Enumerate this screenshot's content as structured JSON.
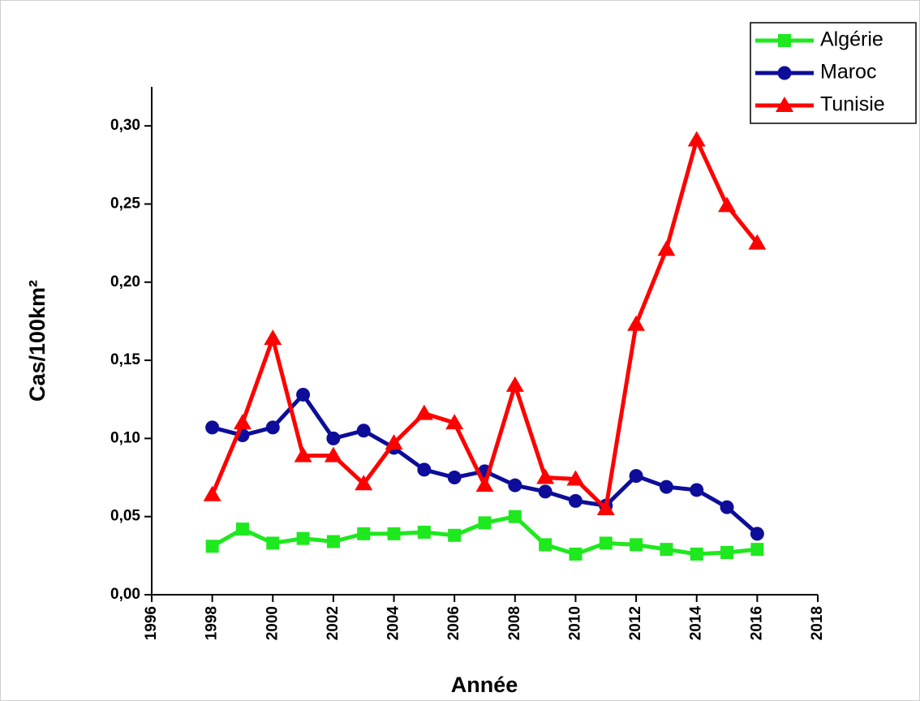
{
  "chart_data": {
    "type": "line",
    "xlabel": "Année",
    "ylabel": "Cas/100km²",
    "xlim": [
      1996,
      2018
    ],
    "xticks": [
      1996,
      1998,
      2000,
      2002,
      2004,
      2006,
      2008,
      2010,
      2012,
      2014,
      2016,
      2018
    ],
    "ylim": [
      0,
      0.325
    ],
    "yticks": [
      {
        "value": 0,
        "label": "0,00"
      },
      {
        "value": 0.05,
        "label": "0,05"
      },
      {
        "value": 0.1,
        "label": "0,10"
      },
      {
        "value": 0.15,
        "label": "0,15"
      },
      {
        "value": 0.2,
        "label": "0,20"
      },
      {
        "value": 0.25,
        "label": "0,25"
      },
      {
        "value": 0.3,
        "label": "0,30"
      }
    ],
    "legend": "top-right",
    "x": [
      1998,
      1999,
      2000,
      2001,
      2002,
      2003,
      2004,
      2005,
      2006,
      2007,
      2008,
      2009,
      2010,
      2011,
      2012,
      2013,
      2014,
      2015,
      2016
    ],
    "series": [
      {
        "name": "Algérie",
        "color": "#1ee81e",
        "marker": "square",
        "values": [
          0.031,
          0.042,
          0.033,
          0.036,
          0.034,
          0.039,
          0.039,
          0.04,
          0.038,
          0.046,
          0.05,
          0.032,
          0.026,
          0.033,
          0.032,
          0.029,
          0.026,
          0.027,
          0.029
        ]
      },
      {
        "name": "Maroc",
        "color": "#0d0d99",
        "marker": "circle",
        "values": [
          0.107,
          0.102,
          0.107,
          0.128,
          0.1,
          0.105,
          0.094,
          0.08,
          0.075,
          0.079,
          0.07,
          0.066,
          0.06,
          0.057,
          0.076,
          0.069,
          0.067,
          0.056,
          0.039
        ]
      },
      {
        "name": "Tunisie",
        "color": "#ff0000",
        "marker": "triangle",
        "values": [
          0.064,
          0.11,
          0.164,
          0.089,
          0.089,
          0.071,
          0.097,
          0.116,
          0.11,
          0.07,
          0.134,
          0.075,
          0.074,
          0.055,
          0.173,
          0.221,
          0.291,
          0.249,
          0.225
        ]
      }
    ]
  }
}
